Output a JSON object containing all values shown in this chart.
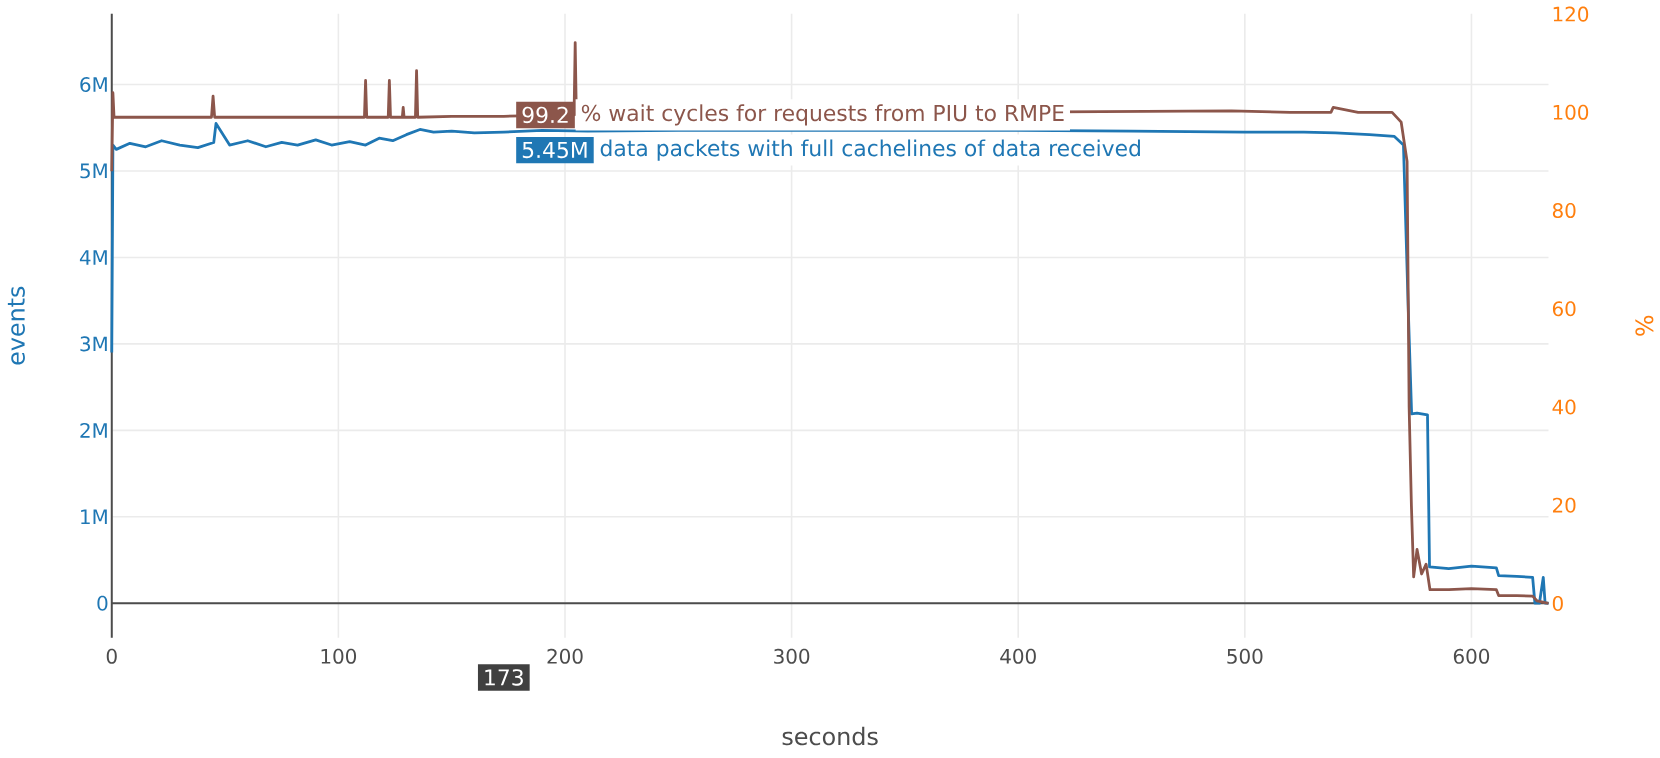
{
  "chart_data": {
    "type": "line",
    "xlabel": "seconds",
    "ylabel": "events",
    "y2label": "%",
    "xlim": [
      0,
      634
    ],
    "xticks": [
      0,
      100,
      200,
      300,
      400,
      500,
      600
    ],
    "ylim": [
      -400000,
      6820000
    ],
    "yticks": [
      0,
      {
        "value": 1000000,
        "label": "1M"
      },
      {
        "value": 2000000,
        "label": "2M"
      },
      {
        "value": 3000000,
        "label": "3M"
      },
      {
        "value": 4000000,
        "label": "4M"
      },
      {
        "value": 5000000,
        "label": "5M"
      },
      {
        "value": 6000000,
        "label": "6M"
      }
    ],
    "y2lim": [
      -7,
      120.1
    ],
    "y2ticks": [
      0,
      20,
      40,
      60,
      80,
      100,
      120
    ],
    "grid": true,
    "legend": "top",
    "series": [
      {
        "name": "data packets with full cachelines of data received",
        "color": "#1f77b4",
        "axis": "y",
        "x": [
          0,
          0.5,
          2,
          8,
          15,
          22,
          30,
          38,
          45,
          46,
          52,
          60,
          68,
          75,
          82,
          90,
          97,
          105,
          112,
          118,
          124,
          130,
          136,
          142,
          150,
          160,
          173,
          190,
          210,
          250,
          350,
          400,
          450,
          500,
          526,
          540,
          555,
          566,
          570,
          572,
          573.6,
          576,
          580.6,
          581.5,
          590,
          600,
          611,
          612,
          620,
          627,
          628,
          630,
          631.7,
          632.5,
          634
        ],
        "values": [
          2900000,
          5300000,
          5250000,
          5320000,
          5280000,
          5350000,
          5300000,
          5270000,
          5330000,
          5550000,
          5300000,
          5350000,
          5280000,
          5330000,
          5300000,
          5360000,
          5300000,
          5340000,
          5300000,
          5380000,
          5350000,
          5420000,
          5480000,
          5450000,
          5460000,
          5440000,
          5450000,
          5470000,
          5460000,
          5470000,
          5470000,
          5470000,
          5460000,
          5450000,
          5450000,
          5440000,
          5420000,
          5400000,
          5300000,
          3500000,
          2190000,
          2200000,
          2180000,
          420000,
          400000,
          430000,
          410000,
          320000,
          310000,
          300000,
          0,
          0,
          300000,
          0,
          0
        ]
      },
      {
        "name": "% wait cycles for requests from PIU to RMPE",
        "color": "#8c564b",
        "axis": "y2",
        "x": [
          0,
          0.5,
          1,
          10,
          25,
          44,
          44.7,
          45.4,
          60,
          80,
          100,
          111.5,
          112,
          112.5,
          122,
          122.5,
          123,
          128.2,
          128.6,
          129,
          134,
          134.5,
          135,
          150,
          173,
          204,
          204.5,
          205,
          494,
          520,
          538,
          539,
          550,
          565,
          569,
          571.6,
          572.5,
          573.5,
          574.5,
          576,
          578,
          580,
          581.7,
          590,
          600,
          611,
          612,
          620,
          627,
          629,
          634
        ],
        "values": [
          88,
          104,
          99,
          99,
          99,
          99,
          103.3,
          99,
          99,
          99,
          99,
          99,
          106.5,
          99,
          99,
          106.5,
          99,
          99,
          101,
          99,
          99,
          108.5,
          99,
          99.2,
          99.2,
          99.5,
          114.2,
          99.5,
          100.3,
          100,
          100,
          101,
          100,
          100,
          98,
          90,
          40,
          20,
          5.4,
          11,
          6,
          8,
          2.8,
          2.8,
          3,
          2.8,
          1.6,
          1.6,
          1.5,
          0.5,
          0
        ]
      }
    ],
    "annotations": [
      {
        "text": "5.45M",
        "x": 173,
        "y": 5450000
      },
      "99.2",
      "173"
    ]
  }
}
